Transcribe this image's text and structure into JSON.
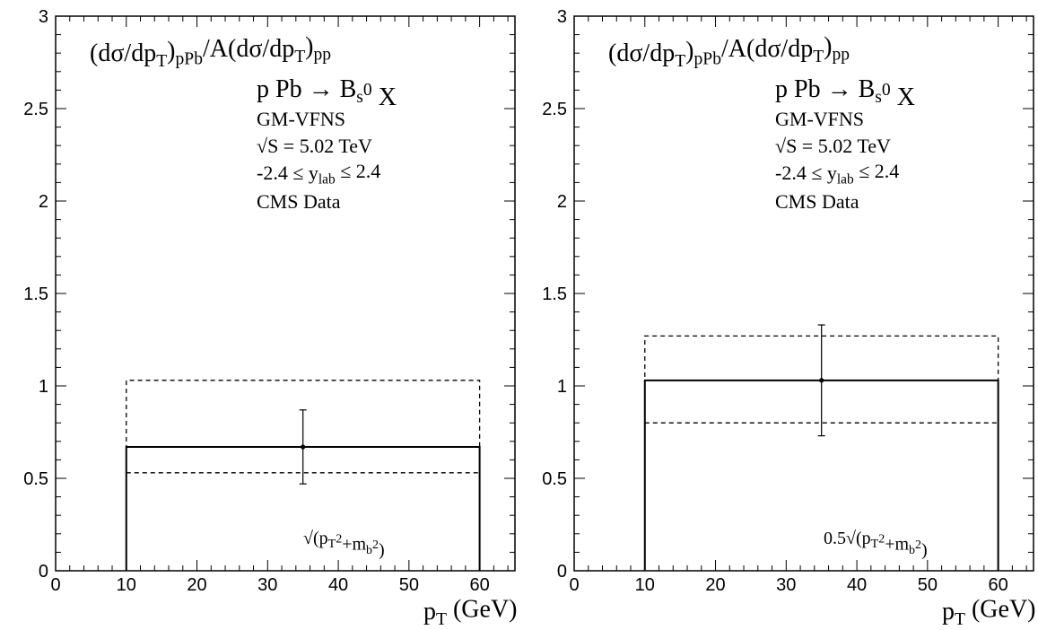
{
  "chart_data": [
    {
      "type": "line",
      "panel": "left",
      "title_parts": [
        "(dσ/dp",
        "T",
        ")",
        "pPb",
        "/A(dσ/dp",
        "T",
        ")",
        "pp"
      ],
      "process_parts": [
        "p Pb → B",
        "s",
        "0",
        " X"
      ],
      "scheme": "GM-VFNS",
      "energy": "√S = 5.02 TeV",
      "rapidity_parts": [
        "-2.4 ≤  y",
        "lab",
        " ≤ 2.4"
      ],
      "data_label": "CMS Data",
      "scale_parts": [
        "√(p",
        "T",
        "2",
        "+m",
        "b",
        "2",
        ")"
      ],
      "xlabel_parts": [
        "p",
        "T",
        " (GeV)"
      ],
      "xlim": [
        0,
        65
      ],
      "ylim": [
        0,
        3
      ],
      "xticks": [
        0,
        10,
        20,
        30,
        40,
        50,
        60
      ],
      "yticks": [
        0,
        0.5,
        1,
        1.5,
        2,
        2.5,
        3
      ],
      "ytick_labels": [
        "0",
        "0.5",
        "1",
        "1.5",
        "2",
        "2.5",
        "3"
      ],
      "theory_bin": {
        "x": [
          10,
          60
        ],
        "central": 0.67,
        "upper": 1.03,
        "lower": 0.53
      },
      "data_point": {
        "x": 35,
        "y": 0.67,
        "yerr_low": 0.2,
        "yerr_high": 0.2
      }
    },
    {
      "type": "line",
      "panel": "right",
      "title_parts": [
        "(dσ/dp",
        "T",
        ")",
        "pPb",
        "/A(dσ/dp",
        "T",
        ")",
        "pp"
      ],
      "process_parts": [
        "p Pb → B",
        "s",
        "0",
        " X"
      ],
      "scheme": "GM-VFNS",
      "energy": "√S = 5.02 TeV",
      "rapidity_parts": [
        "-2.4 ≤  y",
        "lab",
        " ≤ 2.4"
      ],
      "data_label": "CMS Data",
      "scale_parts": [
        "0.5√(p",
        "T",
        "2",
        "+m",
        "b",
        "2",
        ")"
      ],
      "xlabel_parts": [
        "p",
        "T",
        " (GeV)"
      ],
      "xlim": [
        0,
        65
      ],
      "ylim": [
        0,
        3
      ],
      "xticks": [
        0,
        10,
        20,
        30,
        40,
        50,
        60
      ],
      "yticks": [
        0,
        0.5,
        1,
        1.5,
        2,
        2.5,
        3
      ],
      "ytick_labels": [
        "0",
        "0.5",
        "1",
        "1.5",
        "2",
        "2.5",
        "3"
      ],
      "theory_bin": {
        "x": [
          10,
          60
        ],
        "central": 1.03,
        "upper": 1.27,
        "lower": 0.8
      },
      "data_point": {
        "x": 35,
        "y": 1.03,
        "yerr_low": 0.3,
        "yerr_high": 0.3
      }
    }
  ]
}
